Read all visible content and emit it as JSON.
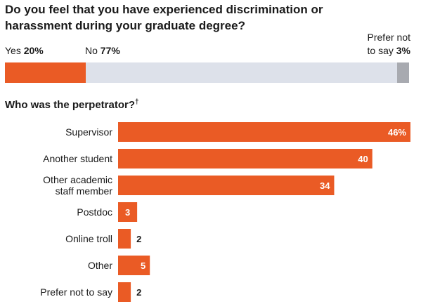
{
  "title": "Do you feel that you have experienced discrimination or harassment during your graduate degree?",
  "subtitle": "Who was the perpetrator?",
  "subtitle_mark": "†",
  "colors": {
    "accent": "#ea5b25",
    "neutral": "#dde1ea",
    "neutral_dark": "#a8aab0"
  },
  "stacked": {
    "segments": [
      {
        "name": "Yes",
        "value": 20,
        "value_text": "20%"
      },
      {
        "name": "No",
        "value": 77,
        "value_text": "77%"
      },
      {
        "name": "Prefer not to say",
        "value": 3,
        "value_text": "3%"
      }
    ],
    "prefer_line1": "Prefer not",
    "prefer_line2": "to say"
  },
  "chart_data": {
    "type": "bar",
    "orientation": "horizontal",
    "title": "Who was the perpetrator?",
    "categories": [
      "Supervisor",
      "Another student",
      "Other academic staff member",
      "Postdoc",
      "Online troll",
      "Other",
      "Prefer not to say"
    ],
    "category_lines": [
      [
        "Supervisor"
      ],
      [
        "Another student"
      ],
      [
        "Other academic",
        "staff member"
      ],
      [
        "Postdoc"
      ],
      [
        "Online troll"
      ],
      [
        "Other"
      ],
      [
        "Prefer not to say"
      ]
    ],
    "values": [
      46,
      40,
      34,
      3,
      2,
      5,
      2
    ],
    "value_labels": [
      "46%",
      "40",
      "34",
      "3",
      "2",
      "5",
      "2"
    ],
    "xlim": [
      0,
      46
    ]
  }
}
